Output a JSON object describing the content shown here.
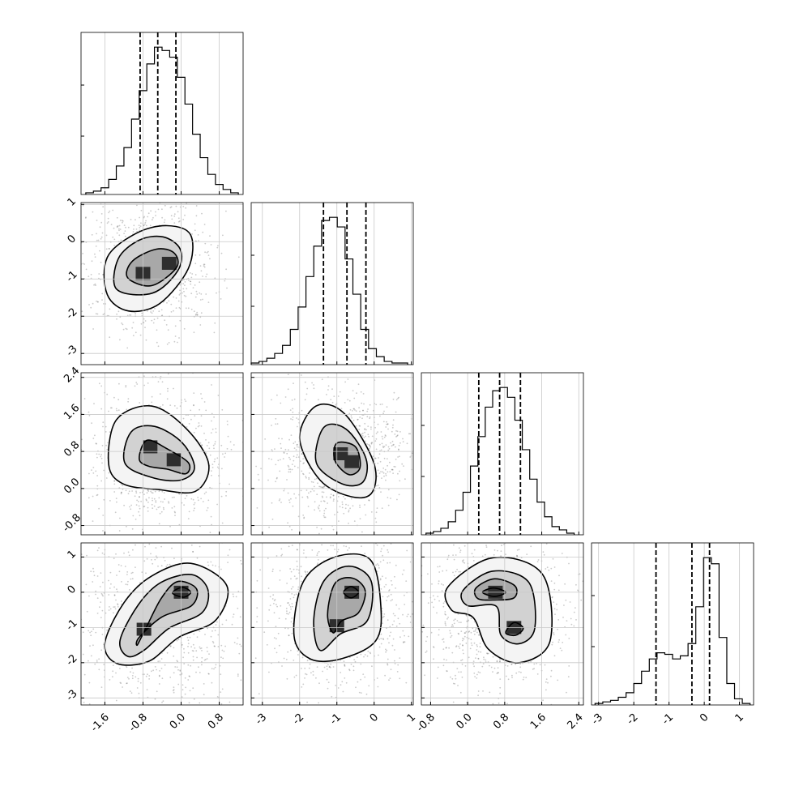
{
  "chart_data": {
    "type": "corner",
    "n_params": 4,
    "grid": true,
    "scatter_color": "#404040",
    "hist_color": "#000000",
    "ranges": [
      [
        -2.1,
        1.3
      ],
      [
        -3.3,
        1.05
      ],
      [
        -1.0,
        2.5
      ],
      [
        -3.2,
        1.4
      ]
    ],
    "ticks": [
      {
        "values": [
          -1.6,
          -0.8,
          0.0,
          0.8
        ],
        "labels": [
          "-1.6",
          "-0.8",
          "0.0",
          "0.8"
        ]
      },
      {
        "values": [
          -3,
          -2,
          -1,
          0,
          1
        ],
        "labels": [
          "-3",
          "-2",
          "-1",
          "0",
          "1"
        ]
      },
      {
        "values": [
          -0.8,
          0.0,
          0.8,
          1.6,
          2.4
        ],
        "labels": [
          "-0.8",
          "0.0",
          "0.8",
          "1.6",
          "2.4"
        ]
      },
      {
        "values": [
          -3,
          -2,
          -1,
          0,
          1
        ],
        "labels": [
          "-3",
          "-2",
          "-1",
          "0",
          "1"
        ]
      }
    ],
    "quantiles": [
      [
        -0.86,
        -0.49,
        -0.11
      ],
      [
        -1.36,
        -0.73,
        -0.22
      ],
      [
        0.24,
        0.69,
        1.14
      ],
      [
        -1.37,
        -0.35,
        0.15
      ]
    ],
    "histograms": [
      {
        "edges_from": -2.0,
        "edges_to": 1.2,
        "counts": [
          1,
          2,
          4,
          9,
          17,
          28,
          45,
          62,
          78,
          88,
          86,
          82,
          70,
          54,
          36,
          22,
          12,
          6,
          3,
          1
        ]
      },
      {
        "edges_from": -3.3,
        "edges_to": 0.9,
        "counts": [
          1,
          2,
          4,
          7,
          12,
          22,
          36,
          55,
          74,
          90,
          92,
          86,
          66,
          44,
          22,
          10,
          5,
          2,
          1,
          1
        ]
      },
      {
        "edges_from": -0.9,
        "edges_to": 2.3,
        "counts": [
          1,
          2,
          4,
          8,
          15,
          26,
          42,
          60,
          78,
          88,
          90,
          84,
          70,
          52,
          34,
          20,
          11,
          5,
          3,
          1
        ]
      },
      {
        "edges_from": -3.1,
        "edges_to": 1.3,
        "counts": [
          1,
          2,
          3,
          5,
          8,
          14,
          22,
          30,
          34,
          33,
          30,
          32,
          40,
          64,
          96,
          92,
          44,
          14,
          4,
          1
        ]
      }
    ],
    "pair_panels": [
      {
        "row": 1,
        "col": 0,
        "contours": [
          [
            [
              -1.12,
              -0.97
            ],
            [
              -1.02,
              -0.52
            ],
            [
              -0.52,
              -0.2
            ],
            [
              -0.15,
              -0.3
            ],
            [
              -0.1,
              -0.7
            ],
            [
              -0.62,
              -1.18
            ]
          ],
          [
            [
              -1.35,
              -1.28
            ],
            [
              -1.32,
              -0.46
            ],
            [
              -0.88,
              0.04
            ],
            [
              -0.38,
              0.13
            ],
            [
              -0.02,
              -0.2
            ],
            [
              -0.07,
              -0.78
            ],
            [
              -0.6,
              -1.38
            ]
          ],
          [
            [
              -1.55,
              -1.42
            ],
            [
              -1.55,
              -0.42
            ],
            [
              -0.95,
              0.22
            ],
            [
              -0.3,
              0.43
            ],
            [
              0.2,
              0.18
            ],
            [
              0.15,
              -0.72
            ],
            [
              -0.45,
              -1.66
            ],
            [
              -1.1,
              -1.86
            ]
          ]
        ],
        "peaks": [
          [
            -0.8,
            -0.85
          ],
          [
            -0.25,
            -0.58
          ]
        ]
      },
      {
        "row": 2,
        "col": 0,
        "contours": [
          [
            [
              -0.88,
              0.64
            ],
            [
              -0.72,
              1.04
            ],
            [
              -0.3,
              0.86
            ],
            [
              0.15,
              0.56
            ],
            [
              0.1,
              0.32
            ],
            [
              -0.3,
              0.42
            ],
            [
              -0.68,
              0.48
            ]
          ],
          [
            [
              -1.18,
              0.55
            ],
            [
              -1.05,
              1.22
            ],
            [
              -0.55,
              1.34
            ],
            [
              0.03,
              0.98
            ],
            [
              0.28,
              0.44
            ],
            [
              -0.02,
              0.18
            ],
            [
              -0.62,
              0.24
            ]
          ],
          [
            [
              -1.52,
              0.52
            ],
            [
              -1.36,
              1.48
            ],
            [
              -0.62,
              1.78
            ],
            [
              0.12,
              1.28
            ],
            [
              0.58,
              0.52
            ],
            [
              0.3,
              -0.06
            ],
            [
              -0.5,
              -0.02
            ],
            [
              -1.22,
              0.1
            ]
          ]
        ],
        "peaks": [
          [
            -0.65,
            0.9
          ],
          [
            -0.15,
            0.62
          ]
        ]
      },
      {
        "row": 2,
        "col": 1,
        "contours": [
          [
            [
              -1.05,
              0.6
            ],
            [
              -1.0,
              0.98
            ],
            [
              -0.5,
              0.9
            ],
            [
              -0.38,
              0.45
            ],
            [
              -0.68,
              0.3
            ]
          ],
          [
            [
              -1.55,
              0.55
            ],
            [
              -1.35,
              1.32
            ],
            [
              -0.75,
              1.28
            ],
            [
              -0.22,
              0.65
            ],
            [
              -0.3,
              0.14
            ],
            [
              -0.86,
              0.1
            ]
          ],
          [
            [
              -2.0,
              1.08
            ],
            [
              -1.56,
              1.78
            ],
            [
              -0.8,
              1.62
            ],
            [
              -0.02,
              0.58
            ],
            [
              -0.05,
              -0.08
            ],
            [
              -0.6,
              -0.18
            ],
            [
              -1.45,
              0.18
            ]
          ]
        ],
        "peaks": [
          [
            -0.9,
            0.75
          ],
          [
            -0.6,
            0.58
          ]
        ]
      },
      {
        "row": 3,
        "col": 0,
        "contours": [
          [
            [
              -0.18,
              -0.02
            ],
            [
              0.02,
              0.14
            ],
            [
              0.2,
              0.0
            ],
            [
              0.05,
              -0.14
            ]
          ],
          [
            [
              -0.92,
              -1.5
            ],
            [
              -0.76,
              -1.08
            ],
            [
              -0.42,
              -0.18
            ],
            [
              -0.08,
              0.3
            ],
            [
              0.32,
              0.1
            ],
            [
              0.22,
              -0.38
            ],
            [
              -0.4,
              -0.7
            ],
            [
              -0.88,
              -1.28
            ]
          ],
          [
            [
              -1.28,
              -1.36
            ],
            [
              -0.9,
              -0.36
            ],
            [
              -0.42,
              0.28
            ],
            [
              0.22,
              0.5
            ],
            [
              0.56,
              0.08
            ],
            [
              0.44,
              -0.58
            ],
            [
              -0.25,
              -1.02
            ],
            [
              -0.78,
              -1.65
            ],
            [
              -1.12,
              -1.82
            ]
          ],
          [
            [
              -1.6,
              -1.45
            ],
            [
              -1.2,
              -0.3
            ],
            [
              -0.62,
              0.46
            ],
            [
              0.2,
              0.82
            ],
            [
              0.96,
              0.18
            ],
            [
              0.72,
              -0.8
            ],
            [
              -0.05,
              -1.28
            ],
            [
              -0.68,
              -1.96
            ],
            [
              -1.35,
              -2.02
            ]
          ]
        ],
        "peaks": [
          [
            0.0,
            0.0
          ],
          [
            -0.78,
            -1.05
          ]
        ]
      },
      {
        "row": 3,
        "col": 1,
        "contours": [
          [
            [
              -0.82,
              0.0
            ],
            [
              -0.62,
              0.16
            ],
            [
              -0.42,
              0.0
            ],
            [
              -0.62,
              -0.16
            ]
          ],
          [
            [
              -1.25,
              -0.62
            ],
            [
              -1.05,
              0.25
            ],
            [
              -0.58,
              0.4
            ],
            [
              -0.24,
              0.04
            ],
            [
              -0.42,
              -0.58
            ],
            [
              -0.88,
              -0.82
            ],
            [
              -1.1,
              -1.15
            ]
          ],
          [
            [
              -1.62,
              -0.78
            ],
            [
              -1.35,
              0.32
            ],
            [
              -0.68,
              0.74
            ],
            [
              -0.08,
              0.32
            ],
            [
              -0.18,
              -0.8
            ],
            [
              -0.9,
              -1.18
            ],
            [
              -1.45,
              -1.65
            ]
          ],
          [
            [
              -2.15,
              -1.24
            ],
            [
              -1.9,
              0.3
            ],
            [
              -1.05,
              1.0
            ],
            [
              -0.1,
              0.92
            ],
            [
              0.18,
              -0.4
            ],
            [
              0.04,
              -1.38
            ],
            [
              -0.85,
              -1.88
            ],
            [
              -1.7,
              -1.9
            ]
          ]
        ],
        "peaks": [
          [
            -0.6,
            0.0
          ],
          [
            -1.0,
            -0.95
          ]
        ]
      },
      {
        "row": 3,
        "col": 2,
        "contours": [
          [
            [
              0.32,
              0.0
            ],
            [
              0.56,
              0.12
            ],
            [
              0.82,
              0.0
            ],
            [
              0.58,
              -0.12
            ]
          ],
          [
            [
              0.82,
              -1.15
            ],
            [
              1.0,
              -0.86
            ],
            [
              1.2,
              -1.02
            ],
            [
              1.04,
              -1.22
            ]
          ],
          [
            [
              0.18,
              0.12
            ],
            [
              0.58,
              0.38
            ],
            [
              1.02,
              0.18
            ],
            [
              1.0,
              -0.16
            ],
            [
              0.58,
              -0.22
            ],
            [
              0.22,
              -0.18
            ]
          ],
          [
            [
              -0.1,
              0.05
            ],
            [
              0.55,
              0.6
            ],
            [
              1.32,
              0.28
            ],
            [
              1.45,
              -1.02
            ],
            [
              1.12,
              -1.46
            ],
            [
              0.72,
              -1.22
            ],
            [
              0.62,
              -0.4
            ],
            [
              0.0,
              -0.38
            ]
          ],
          [
            [
              -0.42,
              0.16
            ],
            [
              0.55,
              0.98
            ],
            [
              1.62,
              0.5
            ],
            [
              1.78,
              -1.38
            ],
            [
              1.12,
              -2.0
            ],
            [
              0.45,
              -1.62
            ],
            [
              0.12,
              -0.72
            ],
            [
              -0.35,
              -0.5
            ]
          ]
        ],
        "peaks": [
          [
            0.6,
            0.0
          ],
          [
            1.0,
            -1.0
          ]
        ]
      }
    ]
  }
}
